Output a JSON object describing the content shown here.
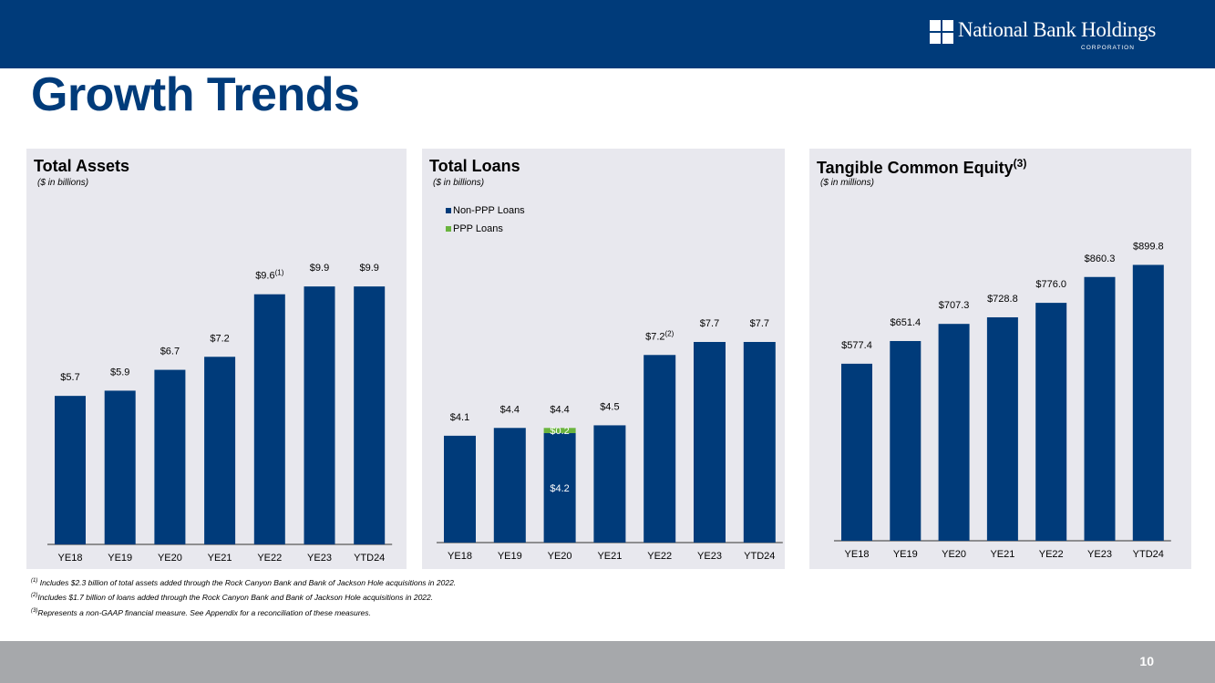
{
  "header": {
    "logo_name": "National Bank Holdings",
    "logo_subtitle": "CORPORATION"
  },
  "page_title": "Growth Trends",
  "chart_data": [
    {
      "type": "bar",
      "title": "Total Assets",
      "unit_note": "($ in billions)",
      "categories": [
        "YE18",
        "YE19",
        "YE20",
        "YE21",
        "YE22",
        "YE23",
        "YTD24"
      ],
      "values": [
        5.7,
        5.9,
        6.7,
        7.2,
        9.6,
        9.9,
        9.9
      ],
      "labels": [
        "$5.7",
        "$5.9",
        "$6.7",
        "$7.2",
        "$9.6",
        "$9.9",
        "$9.9"
      ],
      "label_superscripts": [
        "",
        "",
        "",
        "",
        "(1)",
        "",
        ""
      ],
      "ylim": [
        0,
        10.5
      ],
      "color": "#003b7a",
      "grid": false
    },
    {
      "type": "bar",
      "stacked": true,
      "title": "Total Loans",
      "unit_note": "($ in billions)",
      "categories": [
        "YE18",
        "YE19",
        "YE20",
        "YE21",
        "YE22",
        "YE23",
        "YTD24"
      ],
      "series": [
        {
          "name": "Non-PPP Loans",
          "values": [
            4.1,
            4.4,
            4.2,
            4.5,
            7.2,
            7.7,
            7.7
          ],
          "color": "#003b7a"
        },
        {
          "name": "PPP Loans",
          "values": [
            0,
            0,
            0.2,
            0,
            0,
            0,
            0
          ],
          "color": "#6ab43e"
        }
      ],
      "totals": [
        "$4.1",
        "$4.4",
        "$4.4",
        "$4.5",
        "$7.2",
        "$7.7",
        "$7.7"
      ],
      "total_superscripts": [
        "",
        "",
        "",
        "",
        "(2)",
        "",
        ""
      ],
      "segment_labels": [
        {
          "category": "YE20",
          "series": "PPP Loans",
          "text": "$0.2"
        },
        {
          "category": "YE20",
          "series": "Non-PPP Loans",
          "text": "$4.2"
        }
      ],
      "legend_position": "top-left",
      "ylim": [
        0,
        10.5
      ],
      "grid": false
    },
    {
      "type": "bar",
      "title": "Tangible Common Equity",
      "title_superscript": "(3)",
      "unit_note": "($ in millions)",
      "categories": [
        "YE18",
        "YE19",
        "YE20",
        "YE21",
        "YE22",
        "YE23",
        "YTD24"
      ],
      "values": [
        577.4,
        651.4,
        707.3,
        728.8,
        776.0,
        860.3,
        899.8
      ],
      "labels": [
        "$577.4",
        "$651.4",
        "$707.3",
        "$728.8",
        "$776.0",
        "$860.3",
        "$899.8"
      ],
      "label_superscripts": [
        "",
        "",
        "",
        "",
        "",
        "",
        ""
      ],
      "ylim": [
        0,
        1160
      ],
      "color": "#003b7a",
      "grid": false
    }
  ],
  "footnotes": [
    {
      "marker": "(1)",
      "text": " Includes $2.3 billion of total assets added through the Rock Canyon Bank and Bank of Jackson Hole acquisitions in 2022."
    },
    {
      "marker": "(2)",
      "text": "Includes $1.7 billion of loans added through the Rock Canyon Bank and Bank of Jackson Hole acquisitions in 2022."
    },
    {
      "marker": "(3)",
      "text": "Represents a non-GAAP financial measure.  See Appendix for a reconciliation of these measures."
    }
  ],
  "page_number": "10"
}
